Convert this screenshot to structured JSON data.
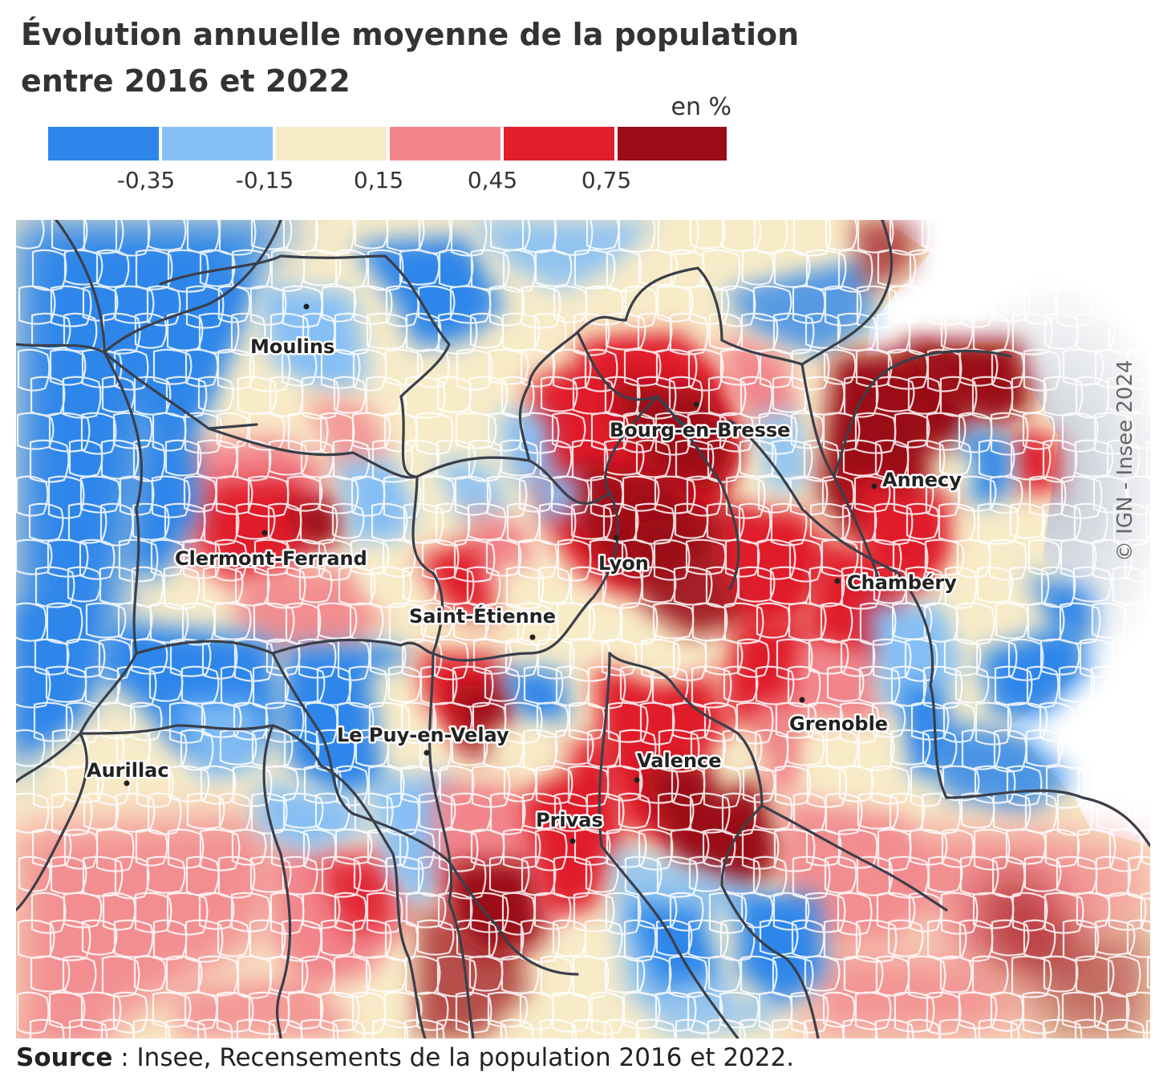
{
  "title_line1": "Évolution annuelle moyenne de la population",
  "title_line2": "entre 2016 et 2022",
  "unit": "en %",
  "legend": {
    "colors": [
      "#2e86ea",
      "#86bff5",
      "#f8ebc8",
      "#f2858b",
      "#e01f2b",
      "#9b0e17"
    ],
    "ticks": [
      "-0,35",
      "-0,15",
      "0,15",
      "0,45",
      "0,75"
    ]
  },
  "cities": [
    {
      "name": "Moulins"
    },
    {
      "name": "Bourg-en-Bresse"
    },
    {
      "name": "Annecy"
    },
    {
      "name": "Clermont-Ferrand"
    },
    {
      "name": "Lyon"
    },
    {
      "name": "Chambéry"
    },
    {
      "name": "Saint-Étienne"
    },
    {
      "name": "Grenoble"
    },
    {
      "name": "Le Puy-en-Velay"
    },
    {
      "name": "Valence"
    },
    {
      "name": "Aurillac"
    },
    {
      "name": "Privas"
    }
  ],
  "copyright": "© IGN - Insee 2024",
  "source": {
    "label": "Source",
    "text": " : Insee, Recensements de la population 2016 et 2022."
  }
}
